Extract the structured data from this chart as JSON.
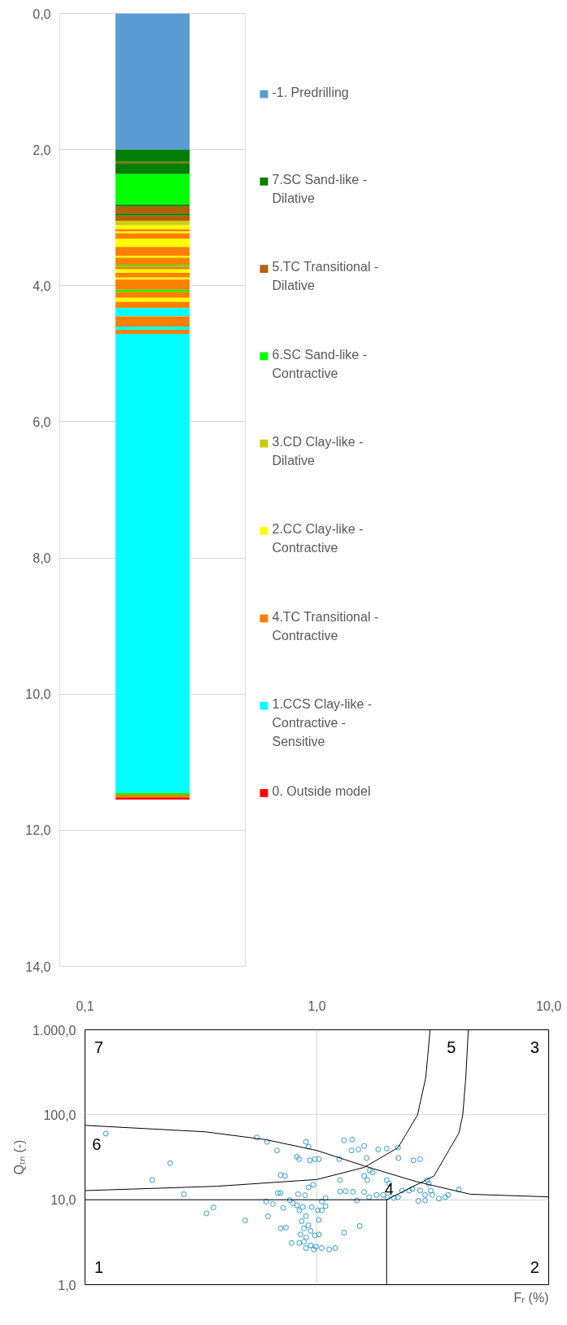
{
  "chart_data": [
    {
      "type": "bar",
      "categories": [
        null
      ],
      "ylim": [
        14,
        0
      ],
      "yticks": [
        {
          "value": 0,
          "label": "0,0"
        },
        {
          "value": 2,
          "label": "2,0"
        },
        {
          "value": 4,
          "label": "4,0"
        },
        {
          "value": 6,
          "label": "6,0"
        },
        {
          "value": 8,
          "label": "8,0"
        },
        {
          "value": 10,
          "label": "10,0"
        },
        {
          "value": 12,
          "label": "12,0"
        },
        {
          "value": 14,
          "label": "14,0"
        }
      ],
      "grid": "y",
      "legend": "right",
      "tick_labels": "y",
      "stacked": true,
      "series": [
        {
          "name": "-1. Predrilling",
          "color": "#5b9bd5",
          "values": [
            2.0
          ]
        },
        {
          "name": "7.SC Sand-like - Dilative",
          "color": "#007f00",
          "values": [
            0.18
          ]
        },
        {
          "name": "5.TC Transitional - Dilative",
          "color": "#b36200",
          "values": [
            0.02
          ]
        },
        {
          "color": "#007f00",
          "values": [
            0.16
          ]
        },
        {
          "name": "6.SC Sand-like - Contractive",
          "color": "#00ff00",
          "values": [
            0.45
          ]
        },
        {
          "color": "#007f00",
          "values": [
            0.03
          ]
        },
        {
          "color": "#b36200",
          "values": [
            0.1
          ]
        },
        {
          "color": "#007f00",
          "values": [
            0.03
          ]
        },
        {
          "color": "#b36200",
          "values": [
            0.08
          ]
        },
        {
          "name": "3.CD Clay-like - Dilative",
          "color": "#cccc00",
          "values": [
            0.06
          ]
        },
        {
          "name": "2.CC Clay-like - Contractive",
          "color": "#ffff00",
          "values": [
            0.06
          ]
        },
        {
          "name": "4.TC Transitional - Contractive",
          "color": "#ff7f00",
          "values": [
            0.03
          ]
        },
        {
          "color": "#ffff00",
          "values": [
            0.03
          ]
        },
        {
          "color": "#ff7f00",
          "values": [
            0.08
          ]
        },
        {
          "color": "#ffff00",
          "values": [
            0.12
          ]
        },
        {
          "color": "#ff7f00",
          "values": [
            0.13
          ]
        },
        {
          "color": "#ffff00",
          "values": [
            0.03
          ]
        },
        {
          "color": "#ff7f00",
          "values": [
            0.11
          ]
        },
        {
          "color": "#00ff00",
          "values": [
            0.02
          ]
        },
        {
          "color": "#ff7f00",
          "values": [
            0.04
          ]
        },
        {
          "color": "#ffff00",
          "values": [
            0.05
          ]
        },
        {
          "color": "#ff7f00",
          "values": [
            0.07
          ]
        },
        {
          "color": "#ffff00",
          "values": [
            0.03
          ]
        },
        {
          "color": "#ff7f00",
          "values": [
            0.15
          ]
        },
        {
          "color": "#00ff00",
          "values": [
            0.03
          ]
        },
        {
          "color": "#ff7f00",
          "values": [
            0.09
          ]
        },
        {
          "color": "#ffff00",
          "values": [
            0.06
          ]
        },
        {
          "color": "#ff7f00",
          "values": [
            0.09
          ]
        },
        {
          "name": "1.CCS Clay-like - Contractive - Sensitive",
          "color": "#00ffff",
          "values": [
            0.12
          ]
        },
        {
          "color": "#ff7f00",
          "values": [
            0.15
          ]
        },
        {
          "color": "#00ffff",
          "values": [
            0.05
          ]
        },
        {
          "color": "#ff7f00",
          "values": [
            0.06
          ]
        },
        {
          "color": "#00ffff",
          "values": [
            6.74
          ]
        },
        {
          "color": "#00ff00",
          "values": [
            0.03
          ]
        },
        {
          "color": "#ff7f00",
          "values": [
            0.04
          ]
        },
        {
          "name": "0. Outside model",
          "color": "#ff0000",
          "values": [
            0.03
          ]
        }
      ]
    },
    {
      "type": "scatter",
      "xlabel": "Fᵣ (%)",
      "ylabel": "Qₜₙ (-)",
      "log": "xy",
      "xlim": [
        0.1,
        10
      ],
      "ylim": [
        1,
        1000
      ],
      "xticks": [
        {
          "value": 0.1,
          "label": "0,1"
        },
        {
          "value": 1,
          "label": "1,0"
        },
        {
          "value": 10,
          "label": "10,0"
        }
      ],
      "yticks": [
        {
          "value": 1,
          "label": "1,0"
        },
        {
          "value": 10,
          "label": "10,0"
        },
        {
          "value": 100,
          "label": "100,0"
        },
        {
          "value": 1000,
          "label": "1.000,0"
        }
      ],
      "grid": true,
      "marker": "circle",
      "series": [
        {
          "color": "#2e9bd0",
          "x": [
            0.123,
            0.233,
            0.195,
            0.267,
            0.334,
            0.358,
            0.491,
            0.551,
            0.61,
            0.673,
            0.615,
            0.605,
            0.646,
            0.698,
            0.729,
            0.679,
            0.697,
            0.698,
            0.736,
            0.716,
            0.778,
            0.82,
            0.839,
            0.898,
            0.921,
            0.933,
            0.981,
            1.02,
            0.965,
            0.92,
            0.83,
            0.89,
            0.764,
            0.79,
            0.82,
            0.87,
            0.95,
            0.84,
            0.898,
            0.86,
            0.92,
            0.88,
            0.94,
            0.85,
            0.9,
            0.98,
            0.88,
            0.94,
            0.84,
            0.99,
            1.05,
            0.898,
            0.97,
            1.02,
            1.02,
            1.01,
            1.05,
            1.09,
            1.13,
            1.2,
            1.31,
            1.53,
            1.09,
            1.05,
            1.25,
            1.31,
            1.42,
            1.41,
            1.51,
            1.6,
            1.64,
            1.84,
            2.0,
            2.24,
            2.25,
            2.61,
            2.79,
            1.69,
            1.74,
            1.6,
            1.65,
            1.26,
            1.26,
            1.33,
            1.43,
            1.6,
            1.49,
            1.68,
            1.81,
            1.93,
            2.0,
            2.05,
            2.02,
            2.24,
            2.33,
            2.5,
            2.58,
            2.79,
            2.99,
            3.04,
            3.1,
            2.93,
            2.74,
            2.93,
            3.15,
            3.36,
            3.68,
            4.1,
            3.58,
            2.15
          ],
          "values": [
            60,
            26.9,
            17,
            11.6,
            6.9,
            8.1,
            5.7,
            54,
            48,
            38,
            6.4,
            9.5,
            8.9,
            19.5,
            19.1,
            12,
            12,
            4.6,
            4.7,
            8,
            3.1,
            32,
            30,
            48,
            42,
            29,
            30,
            30,
            15,
            14,
            11.6,
            11.3,
            9.9,
            9.1,
            8.6,
            8.2,
            8.2,
            7.5,
            6.4,
            5.6,
            5.0,
            4.6,
            4.3,
            3.9,
            3.6,
            3.8,
            3.2,
            2.9,
            3.1,
            2.8,
            2.7,
            2.7,
            2.6,
            3.9,
            5.8,
            7.5,
            9.5,
            10.5,
            2.6,
            2.7,
            4.1,
            4.9,
            8.4,
            7.5,
            30,
            50,
            51,
            38,
            39,
            43,
            31,
            39,
            40,
            41,
            31,
            29,
            30,
            22,
            21,
            19,
            17,
            17,
            12.5,
            12.6,
            12.4,
            12.3,
            9.8,
            10.7,
            11.4,
            11.4,
            17,
            15.5,
            10.7,
            10.7,
            12.8,
            12.8,
            13.4,
            12.8,
            17,
            15.5,
            12.8,
            11.4,
            9.7,
            9.8,
            11.4,
            10.3,
            11.4,
            13.2,
            10.7,
            10.5
          ]
        },
        {
          "type": "line",
          "marker": "none",
          "color": "#000000",
          "x": [
            0.1,
            0.33,
            0.6,
            1.0,
            1.6,
            2.69,
            4.6,
            10
          ],
          "values": [
            75,
            63,
            51,
            38,
            25,
            16.3,
            11.6,
            10.8
          ]
        },
        {
          "type": "line",
          "marker": "none",
          "color": "#000000",
          "x": [
            0.1,
            0.37,
            1.0,
            1.6,
            2.24,
            2.72,
            2.95,
            3.08
          ],
          "values": [
            12.8,
            14.4,
            17.3,
            24,
            41,
            100,
            275,
            1000
          ]
        },
        {
          "type": "line",
          "marker": "none",
          "color": "#000000",
          "x": [
            2.0,
            3.2,
            4.1,
            4.26,
            4.39,
            4.5
          ],
          "values": [
            10,
            19,
            61,
            100,
            275,
            1000
          ]
        },
        {
          "type": "line",
          "marker": "none",
          "color": "#000000",
          "x": [
            0.1,
            2.0
          ],
          "values": [
            10,
            10
          ]
        },
        {
          "type": "line",
          "marker": "none",
          "color": "#000000",
          "x": [
            2.0,
            2.0
          ],
          "values": [
            1,
            10
          ]
        }
      ],
      "annotations": [
        "1",
        "2",
        "3",
        {
          "text": "4",
          "x": 2.05,
          "y": 13.4
        },
        "5",
        "6",
        "7"
      ]
    }
  ]
}
